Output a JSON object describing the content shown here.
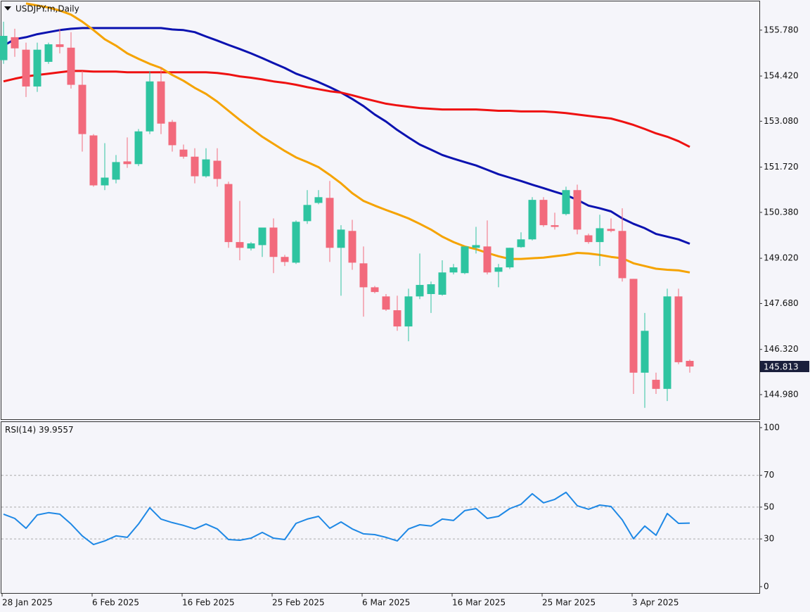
{
  "chart_data": [
    {
      "type": "candlestick",
      "title": "USDJPY.m,Daily",
      "categories": [
        "28 Jan 2025",
        null,
        null,
        null,
        null,
        null,
        null,
        null,
        "6 Feb 2025",
        null,
        null,
        null,
        null,
        null,
        null,
        null,
        "16 Feb 2025",
        null,
        null,
        null,
        null,
        null,
        null,
        null,
        "25 Feb 2025",
        null,
        null,
        null,
        null,
        null,
        null,
        null,
        "6 Mar 2025",
        null,
        null,
        null,
        null,
        null,
        null,
        null,
        "16 Mar 2025",
        null,
        null,
        null,
        null,
        null,
        null,
        null,
        "25 Mar 2025",
        null,
        null,
        null,
        null,
        null,
        null,
        null,
        "3 Apr 2025",
        null,
        null,
        null,
        null,
        null
      ],
      "open": [
        154.89,
        155.57,
        155.2,
        154.11,
        154.84,
        155.36,
        155.26,
        154.16,
        152.66,
        151.18,
        151.35,
        151.89,
        151.81,
        152.78,
        154.26,
        153.06,
        152.24,
        152.03,
        151.45,
        151.91,
        151.22,
        149.5,
        149.31,
        149.41,
        149.93,
        149.06,
        148.89,
        150.12,
        150.66,
        150.81,
        149.33,
        149.83,
        148.87,
        148.16,
        147.89,
        147.48,
        147.0,
        147.89,
        147.96,
        147.94,
        148.6,
        148.58,
        149.33,
        149.37,
        148.62,
        148.75,
        149.35,
        149.58,
        150.75,
        150.0,
        150.33,
        151.04,
        149.7,
        149.5,
        149.89,
        149.83,
        148.41,
        145.63,
        145.42,
        145.15,
        147.89,
        145.98
      ],
      "high": [
        156.03,
        155.82,
        155.41,
        155.41,
        155.41,
        155.82,
        155.72,
        154.57,
        152.7,
        152.43,
        152.08,
        152.6,
        152.85,
        154.57,
        154.68,
        153.12,
        152.39,
        152.28,
        152.28,
        152.28,
        151.29,
        150.72,
        149.5,
        149.93,
        150.2,
        149.12,
        150.14,
        151.04,
        151.04,
        151.31,
        150.0,
        150.16,
        149.37,
        148.2,
        147.96,
        147.91,
        148.12,
        149.16,
        148.33,
        148.96,
        148.85,
        149.37,
        149.95,
        150.14,
        148.85,
        149.33,
        149.79,
        150.83,
        150.83,
        150.37,
        151.14,
        151.2,
        149.75,
        150.31,
        150.2,
        150.5,
        148.41,
        147.4,
        145.63,
        148.12,
        148.12,
        146.02
      ],
      "low": [
        154.78,
        154.99,
        153.8,
        153.95,
        154.78,
        155.09,
        154.05,
        152.18,
        151.14,
        151.04,
        151.24,
        151.7,
        151.75,
        152.7,
        152.7,
        152.18,
        151.97,
        151.24,
        151.41,
        151.14,
        149.33,
        148.96,
        149.25,
        149.06,
        148.58,
        148.79,
        148.85,
        150.04,
        150.62,
        148.91,
        147.91,
        148.68,
        147.29,
        147.98,
        147.46,
        146.87,
        146.56,
        147.81,
        147.4,
        147.91,
        148.54,
        148.55,
        149.16,
        148.54,
        148.16,
        148.7,
        149.33,
        149.55,
        149.95,
        149.87,
        150.29,
        149.73,
        149.45,
        148.79,
        149.79,
        148.33,
        145.0,
        144.59,
        145.0,
        144.79,
        145.88,
        145.63
      ],
      "close": [
        155.61,
        155.24,
        154.11,
        155.2,
        155.36,
        155.28,
        154.16,
        152.7,
        151.18,
        151.41,
        151.87,
        151.81,
        152.78,
        154.26,
        153.01,
        152.37,
        152.03,
        151.45,
        151.95,
        151.37,
        149.5,
        149.33,
        149.46,
        149.93,
        149.06,
        148.91,
        150.1,
        150.6,
        150.83,
        149.33,
        149.87,
        148.89,
        148.16,
        148.02,
        147.5,
        147.0,
        147.89,
        148.23,
        148.25,
        148.6,
        148.75,
        149.37,
        149.41,
        148.6,
        148.75,
        149.33,
        149.58,
        150.75,
        150.0,
        149.95,
        151.04,
        149.87,
        149.5,
        149.91,
        149.83,
        148.43,
        145.63,
        146.87,
        145.15,
        147.89,
        145.94,
        145.813
      ],
      "colors": {
        "up": "#2ec4a0",
        "down": "#f26a7c"
      },
      "series": [
        {
          "color": "#0b12b0",
          "values": [
            155.32,
            155.51,
            155.57,
            155.66,
            155.72,
            155.78,
            155.82,
            155.84,
            155.84,
            155.84,
            155.84,
            155.84,
            155.84,
            155.84,
            155.84,
            155.8,
            155.78,
            155.72,
            155.59,
            155.47,
            155.34,
            155.22,
            155.09,
            154.95,
            154.8,
            154.66,
            154.49,
            154.37,
            154.24,
            154.09,
            153.93,
            153.74,
            153.53,
            153.28,
            153.07,
            152.82,
            152.6,
            152.39,
            152.24,
            152.08,
            151.97,
            151.87,
            151.77,
            151.64,
            151.51,
            151.41,
            151.31,
            151.2,
            151.1,
            150.99,
            150.89,
            150.75,
            150.58,
            150.5,
            150.41,
            150.2,
            150.04,
            149.91,
            149.74,
            149.66,
            149.58,
            149.45
          ]
        },
        {
          "color": "#ee1111",
          "values": [
            154.26,
            154.34,
            154.41,
            154.45,
            154.49,
            154.53,
            154.57,
            154.57,
            154.55,
            154.55,
            154.55,
            154.53,
            154.53,
            154.53,
            154.53,
            154.53,
            154.53,
            154.53,
            154.53,
            154.51,
            154.47,
            154.41,
            154.37,
            154.32,
            154.26,
            154.22,
            154.16,
            154.09,
            154.03,
            153.97,
            153.93,
            153.85,
            153.76,
            153.68,
            153.6,
            153.55,
            153.51,
            153.47,
            153.45,
            153.43,
            153.43,
            153.43,
            153.43,
            153.41,
            153.39,
            153.39,
            153.37,
            153.37,
            153.37,
            153.35,
            153.32,
            153.28,
            153.24,
            153.2,
            153.16,
            153.07,
            152.97,
            152.85,
            152.72,
            152.62,
            152.49,
            152.32
          ]
        },
        {
          "color": "#f5a300",
          "values": [
            null,
            null,
            156.57,
            156.51,
            156.45,
            156.36,
            156.24,
            156.03,
            155.78,
            155.51,
            155.32,
            155.09,
            154.93,
            154.78,
            154.66,
            154.45,
            154.28,
            154.07,
            153.89,
            153.66,
            153.39,
            153.12,
            152.87,
            152.62,
            152.41,
            152.2,
            152.01,
            151.87,
            151.72,
            151.49,
            151.24,
            150.95,
            150.72,
            150.58,
            150.45,
            150.33,
            150.2,
            150.04,
            149.87,
            149.66,
            149.5,
            149.37,
            149.29,
            149.18,
            149.08,
            149.0,
            149.0,
            149.02,
            149.04,
            149.08,
            149.12,
            149.18,
            149.16,
            149.12,
            149.06,
            149.02,
            148.87,
            148.79,
            148.71,
            148.68,
            148.66,
            148.6
          ]
        }
      ],
      "ylim": [
        144.25,
        156.61
      ],
      "yticks": [
        {
          "value": 155.78,
          "label": "155.780"
        },
        {
          "value": 154.42,
          "label": "154.420"
        },
        {
          "value": 153.08,
          "label": "153.080"
        },
        {
          "value": 151.72,
          "label": "151.720"
        },
        {
          "value": 150.38,
          "label": "150.380"
        },
        {
          "value": 149.02,
          "label": "149.020"
        },
        {
          "value": 147.68,
          "label": "147.680"
        },
        {
          "value": 146.32,
          "label": "146.320"
        },
        {
          "value": 144.98,
          "label": "144.980"
        }
      ]
    },
    {
      "type": "line",
      "title": "RSI(14)",
      "series": [
        {
          "color": "#1e88e5",
          "values": [
            45.6,
            42.9,
            36.7,
            45.1,
            46.5,
            45.6,
            39.4,
            31.9,
            26.5,
            28.8,
            31.9,
            31.0,
            39.4,
            49.6,
            42.5,
            40.3,
            38.5,
            36.3,
            39.4,
            36.3,
            29.6,
            29.2,
            30.5,
            34.1,
            30.5,
            29.6,
            39.8,
            42.5,
            44.2,
            36.7,
            40.7,
            36.3,
            33.2,
            32.7,
            31.0,
            28.8,
            36.3,
            38.9,
            38.1,
            42.5,
            41.6,
            47.8,
            49.1,
            42.9,
            44.2,
            49.1,
            51.8,
            58.4,
            52.7,
            54.9,
            59.3,
            50.9,
            48.7,
            51.3,
            50.4,
            42.0,
            30.1,
            38.1,
            32.3,
            46.0,
            39.8,
            39.9557
          ]
        }
      ],
      "ylim": [
        -4,
        103.5
      ],
      "yticks": [
        0,
        30,
        50,
        70,
        100
      ],
      "levels": [
        30,
        50,
        70
      ]
    }
  ]
}
